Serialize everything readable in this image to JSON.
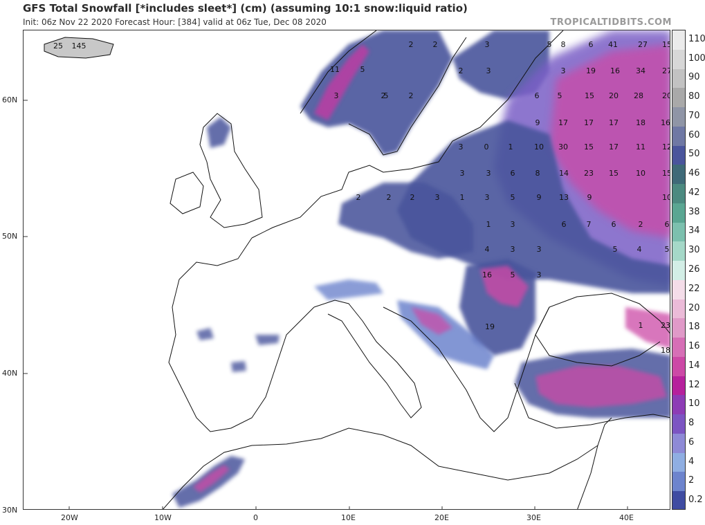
{
  "header": {
    "title": "GFS Total Snowfall [*includes sleet*] (cm) (assuming 10:1 snow:liquid ratio)",
    "subtitle": "Init: 06z Nov 22 2020   Forecast Hour: [384]   valid at 06z Tue, Dec 08 2020",
    "brand": "TROPICALTIDBITS.COM"
  },
  "axes": {
    "lat_labels": [
      "60N",
      "50N",
      "40N",
      "30N"
    ],
    "lon_labels": [
      "20W",
      "10W",
      "0",
      "10E",
      "20E",
      "30E",
      "40E"
    ]
  },
  "colorbar": {
    "labels": [
      "110",
      "100",
      "90",
      "80",
      "70",
      "60",
      "50",
      "46",
      "42",
      "38",
      "34",
      "30",
      "26",
      "22",
      "20",
      "18",
      "16",
      "14",
      "12",
      "10",
      "8",
      "6",
      "4",
      "2",
      "0.2"
    ],
    "colors": [
      "#ebebeb",
      "#d7d7d7",
      "#c2c2c2",
      "#a9a9a9",
      "#8f95a6",
      "#6f78a4",
      "#4a559c",
      "#3f6a78",
      "#4c8a80",
      "#5aa692",
      "#7cc0ae",
      "#a5d8c8",
      "#d3eee6",
      "#f4dde9",
      "#ebbbd8",
      "#e09ac8",
      "#d66fb6",
      "#cc49a6",
      "#b6219c",
      "#8d3cb5",
      "#7c55c2",
      "#8e8ad6",
      "#8faee2",
      "#6d84cd",
      "#3f4ca2"
    ]
  },
  "map": {
    "values": [
      {
        "text": "25"
      },
      {
        "text": "145"
      },
      {
        "text": "2"
      },
      {
        "text": "2"
      },
      {
        "text": "11"
      },
      {
        "text": "5"
      },
      {
        "text": "3"
      },
      {
        "text": "2"
      },
      {
        "text": "5"
      },
      {
        "text": "2"
      },
      {
        "text": "3"
      },
      {
        "text": "5"
      },
      {
        "text": "8"
      },
      {
        "text": "6"
      },
      {
        "text": "41"
      },
      {
        "text": "27"
      },
      {
        "text": "15"
      },
      {
        "text": "2"
      },
      {
        "text": "3"
      },
      {
        "text": "3"
      },
      {
        "text": "19"
      },
      {
        "text": "16"
      },
      {
        "text": "34"
      },
      {
        "text": "27"
      },
      {
        "text": "6"
      },
      {
        "text": "5"
      },
      {
        "text": "15"
      },
      {
        "text": "20"
      },
      {
        "text": "28"
      },
      {
        "text": "20"
      },
      {
        "text": "9"
      },
      {
        "text": "17"
      },
      {
        "text": "17"
      },
      {
        "text": "17"
      },
      {
        "text": "18"
      },
      {
        "text": "16"
      },
      {
        "text": "3"
      },
      {
        "text": "0"
      },
      {
        "text": "1"
      },
      {
        "text": "10"
      },
      {
        "text": "30"
      },
      {
        "text": "15"
      },
      {
        "text": "17"
      },
      {
        "text": "11"
      },
      {
        "text": "12"
      },
      {
        "text": "3"
      },
      {
        "text": "3"
      },
      {
        "text": "6"
      },
      {
        "text": "8"
      },
      {
        "text": "14"
      },
      {
        "text": "23"
      },
      {
        "text": "15"
      },
      {
        "text": "10"
      },
      {
        "text": "15"
      },
      {
        "text": "2"
      },
      {
        "text": "2"
      },
      {
        "text": "2"
      },
      {
        "text": "3"
      },
      {
        "text": "1"
      },
      {
        "text": "3"
      },
      {
        "text": "5"
      },
      {
        "text": "9"
      },
      {
        "text": "13"
      },
      {
        "text": "9"
      },
      {
        "text": "10"
      },
      {
        "text": "1"
      },
      {
        "text": "3"
      },
      {
        "text": "6"
      },
      {
        "text": "7"
      },
      {
        "text": "6"
      },
      {
        "text": "2"
      },
      {
        "text": "6"
      },
      {
        "text": "4"
      },
      {
        "text": "3"
      },
      {
        "text": "3"
      },
      {
        "text": "5"
      },
      {
        "text": "4"
      },
      {
        "text": "5"
      },
      {
        "text": "16"
      },
      {
        "text": "5"
      },
      {
        "text": "3"
      },
      {
        "text": "19"
      },
      {
        "text": "1"
      },
      {
        "text": "23"
      },
      {
        "text": "18"
      }
    ]
  }
}
